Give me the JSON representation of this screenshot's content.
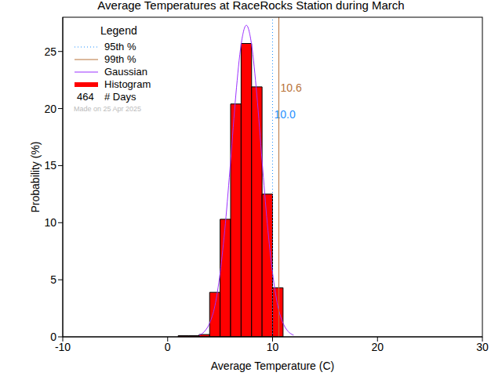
{
  "chart_data": {
    "type": "histogram",
    "title": "Average Temperatures at RaceRocks Station during March",
    "x_label": "Average Temperature (C)",
    "y_label": "Probability (%)",
    "bins": [
      1,
      2,
      3,
      4,
      5,
      6,
      7,
      8,
      9,
      10,
      11
    ],
    "counts": [
      0.1,
      0.1,
      0.2,
      3.9,
      10.3,
      20.4,
      25.7,
      21.9,
      12.5,
      4.3
    ],
    "histogram_name": "Histogram",
    "color": "#ff0000",
    "xlim": [
      -10,
      30
    ],
    "xticks": [
      -10,
      0,
      10,
      20,
      30
    ],
    "ylim": [
      0,
      28
    ],
    "yticks": [
      0,
      5,
      10,
      15,
      20,
      25
    ],
    "series": [
      {
        "name": "Gaussian",
        "type": "line",
        "color": "#9b30ff",
        "x": [
          3,
          3.5,
          4,
          4.5,
          5,
          5.5,
          6,
          6.5,
          7,
          7.5,
          8,
          8.5,
          9,
          9.5,
          10,
          10.5,
          11,
          11.5,
          12
        ],
        "values": [
          0.15,
          0.46,
          1.2,
          2.7,
          5.6,
          9.9,
          15.4,
          21.2,
          25.6,
          27.3,
          25.6,
          21.2,
          15.4,
          9.9,
          5.6,
          2.7,
          1.2,
          0.46,
          0.15
        ]
      }
    ],
    "percentiles": [
      {
        "name": "95th %",
        "value": 10,
        "label": "10.0",
        "color": "#1e90ff",
        "line_style": "dotted"
      },
      {
        "name": "99th %",
        "value": 10.6,
        "label": "10.6",
        "color": "#b8733b",
        "line_style": "solid"
      }
    ],
    "legend_title": "Legend",
    "days": {
      "name": "# Days",
      "value": 464
    },
    "annotation": "Made on 25 Apr 2025",
    "legend": "upper left"
  }
}
